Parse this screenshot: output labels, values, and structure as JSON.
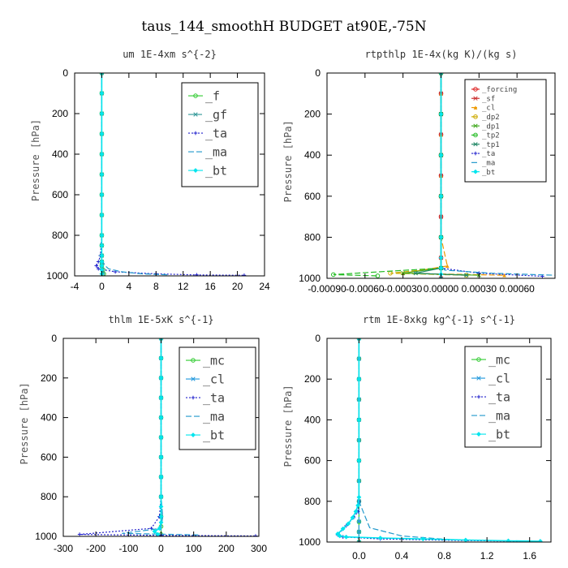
{
  "figure_title": "taus_144_smoothH  BUDGET at90E,-75N",
  "chart_data": [
    {
      "type": "line",
      "title": "um  1E-4xm s^{-2}",
      "xlabel": "",
      "ylabel": "Pressure [hPa]",
      "xlim": [
        -4,
        24
      ],
      "ylim": [
        1000,
        0
      ],
      "xticks": [
        "-4",
        "0",
        "4",
        "8",
        "12",
        "16",
        "20",
        "24"
      ],
      "yticks": [
        "0",
        "200",
        "400",
        "600",
        "800",
        "1000"
      ],
      "legend_position": "top-right",
      "series": [
        {
          "name": "_f",
          "color": "#33cc33",
          "style": "solid",
          "marker": "o",
          "x": [
            0,
            0,
            0,
            0,
            0,
            0,
            0,
            0,
            0,
            0,
            0,
            0,
            0,
            0.2,
            0.3
          ],
          "y": [
            0,
            100,
            200,
            300,
            400,
            500,
            600,
            700,
            800,
            850,
            900,
            930,
            950,
            970,
            990
          ]
        },
        {
          "name": "_gf",
          "color": "#339999",
          "style": "dashed",
          "marker": "*",
          "x": [
            0,
            0,
            0,
            0,
            0,
            0,
            0,
            0,
            0,
            0,
            0,
            0,
            0,
            0.1,
            0.2
          ],
          "y": [
            0,
            100,
            200,
            300,
            400,
            500,
            600,
            700,
            800,
            850,
            900,
            930,
            950,
            970,
            990
          ]
        },
        {
          "name": "_ta",
          "color": "#2222cc",
          "style": "dotted",
          "marker": "+",
          "x": [
            0,
            0,
            0,
            0,
            0,
            0,
            0,
            -0.2,
            -0.5,
            -0.8,
            -0.5,
            2,
            8,
            14,
            21
          ],
          "y": [
            0,
            100,
            200,
            300,
            400,
            600,
            800,
            900,
            930,
            950,
            965,
            980,
            990,
            995,
            997
          ]
        },
        {
          "name": "_ma",
          "color": "#2299cc",
          "style": "dashed",
          "marker": "",
          "x": [
            0,
            0,
            0,
            0,
            0,
            0,
            0,
            0.5,
            1,
            3,
            6,
            10
          ],
          "y": [
            0,
            200,
            400,
            600,
            800,
            880,
            920,
            950,
            965,
            980,
            990,
            995
          ]
        },
        {
          "name": "_bt",
          "color": "#00e5ee",
          "style": "solid",
          "marker": "diamond",
          "x": [
            0,
            0,
            0,
            0,
            0,
            0,
            0,
            0,
            0,
            0,
            0,
            0,
            0,
            0,
            0
          ],
          "y": [
            0,
            100,
            200,
            300,
            400,
            500,
            600,
            700,
            800,
            850,
            900,
            930,
            950,
            970,
            990
          ]
        }
      ]
    },
    {
      "type": "line",
      "title": "rtpthlp  1E-4x(kg K)/(kg s)",
      "xlabel": "",
      "ylabel": "Pressure [hPa]",
      "xlim": [
        -0.0009,
        0.0009
      ],
      "ylim": [
        1000,
        0
      ],
      "xticks": [
        "-0.00090",
        "-0.00060",
        "-0.00030",
        "0.00000",
        "0.00030",
        "0.00060"
      ],
      "yticks": [
        "0",
        "200",
        "400",
        "600",
        "800",
        "1000"
      ],
      "legend_position": "top-right",
      "series": [
        {
          "name": "_forcing",
          "color": "#dd2222",
          "style": "solid",
          "marker": "o",
          "x": [
            0,
            0,
            0,
            0,
            0,
            0,
            0,
            0,
            0,
            0,
            0
          ],
          "y": [
            0,
            100,
            200,
            300,
            400,
            500,
            600,
            700,
            800,
            900,
            1000
          ]
        },
        {
          "name": "_sf",
          "color": "#cc3333",
          "style": "solid",
          "marker": "*",
          "x": [
            0,
            0,
            0,
            0,
            0,
            0,
            0,
            0,
            0,
            0,
            0
          ],
          "y": [
            0,
            100,
            200,
            300,
            400,
            500,
            600,
            700,
            800,
            900,
            1000
          ]
        },
        {
          "name": "_cl",
          "color": "#ee9900",
          "style": "dashed",
          "marker": "triangle",
          "x": [
            0,
            0,
            0,
            0,
            0,
            0,
            0,
            0,
            5e-05,
            -0.0003,
            0.0005
          ],
          "y": [
            0,
            100,
            200,
            300,
            400,
            500,
            600,
            800,
            940,
            975,
            985
          ]
        },
        {
          "name": "_dp2",
          "color": "#ccaa00",
          "style": "dashed",
          "marker": "o",
          "x": [
            0,
            0,
            0,
            0,
            0,
            0,
            -0.0004,
            0.0002
          ],
          "y": [
            0,
            200,
            400,
            600,
            800,
            950,
            975,
            985
          ]
        },
        {
          "name": "_dp1",
          "color": "#44aa22",
          "style": "solid",
          "marker": "x",
          "x": [
            0,
            0,
            0,
            0,
            0,
            0,
            -0.0003,
            0.0003
          ],
          "y": [
            0,
            200,
            400,
            600,
            800,
            950,
            975,
            985
          ]
        },
        {
          "name": "_tp2",
          "color": "#22bb22",
          "style": "dashed",
          "marker": "o",
          "x": [
            0,
            0,
            0,
            0,
            0,
            0,
            -0.00085,
            -0.0005
          ],
          "y": [
            0,
            200,
            400,
            600,
            800,
            950,
            982,
            988
          ]
        },
        {
          "name": "_tp1",
          "color": "#228866",
          "style": "solid",
          "marker": "*",
          "x": [
            0,
            0,
            0,
            0,
            0,
            0,
            -0.0002,
            0.0002
          ],
          "y": [
            0,
            200,
            400,
            600,
            800,
            950,
            975,
            985
          ]
        },
        {
          "name": "_ta",
          "color": "#2222cc",
          "style": "dotted",
          "marker": "+",
          "x": [
            0,
            0,
            0,
            0,
            0,
            0,
            0.0003,
            0.0008
          ],
          "y": [
            0,
            200,
            400,
            600,
            800,
            950,
            975,
            990
          ]
        },
        {
          "name": "_ma",
          "color": "#2299cc",
          "style": "dashed",
          "marker": "",
          "x": [
            0,
            0,
            0,
            0,
            0,
            0,
            3e-05,
            0.0004,
            0.0009
          ],
          "y": [
            0,
            200,
            400,
            600,
            800,
            940,
            960,
            975,
            985
          ]
        },
        {
          "name": "_bt",
          "color": "#00e5ee",
          "style": "solid",
          "marker": "diamond",
          "x": [
            0,
            0,
            0,
            0,
            0,
            0,
            0,
            0,
            0
          ],
          "y": [
            0,
            200,
            400,
            600,
            800,
            900,
            950,
            980,
            1000
          ]
        }
      ]
    },
    {
      "type": "line",
      "title": "thlm  1E-5xK s^{-1}",
      "xlabel": "",
      "ylabel": "Pressure [hPa]",
      "xlim": [
        -300,
        300
      ],
      "ylim": [
        1000,
        0
      ],
      "xticks": [
        "-300",
        "-200",
        "-100",
        "0",
        "100",
        "200",
        "300"
      ],
      "yticks": [
        "0",
        "200",
        "400",
        "600",
        "800",
        "1000"
      ],
      "legend_position": "top-right",
      "series": [
        {
          "name": "_mc",
          "color": "#33cc33",
          "style": "solid",
          "marker": "o",
          "x": [
            0,
            0,
            0,
            0,
            0,
            0,
            0,
            0,
            0,
            0,
            0,
            0
          ],
          "y": [
            0,
            100,
            200,
            300,
            400,
            500,
            600,
            700,
            800,
            900,
            950,
            990
          ]
        },
        {
          "name": "_cl",
          "color": "#2299dd",
          "style": "dashed",
          "marker": "*",
          "x": [
            0,
            0,
            0,
            0,
            0,
            0,
            0,
            0,
            0,
            0,
            0
          ],
          "y": [
            0,
            100,
            200,
            300,
            400,
            500,
            600,
            700,
            800,
            900,
            1000
          ]
        },
        {
          "name": "_ta",
          "color": "#2222cc",
          "style": "dotted",
          "marker": "+",
          "x": [
            0,
            0,
            0,
            0,
            0,
            -5,
            -30,
            -250,
            0,
            290
          ],
          "y": [
            0,
            200,
            400,
            600,
            800,
            900,
            960,
            990,
            995,
            998
          ]
        },
        {
          "name": "_ma",
          "color": "#2299cc",
          "style": "dashed",
          "marker": "",
          "x": [
            0,
            0,
            0,
            0,
            0,
            5,
            0,
            -120,
            120
          ],
          "y": [
            0,
            200,
            400,
            600,
            800,
            900,
            960,
            985,
            993
          ]
        },
        {
          "name": "_bt",
          "color": "#00e5ee",
          "style": "solid",
          "marker": "diamond",
          "x": [
            0,
            0,
            0,
            0,
            0,
            0,
            0,
            0,
            0,
            0,
            0,
            0,
            -5,
            -20,
            -10
          ],
          "y": [
            0,
            100,
            200,
            300,
            400,
            500,
            600,
            700,
            800,
            850,
            900,
            930,
            960,
            975,
            990
          ]
        }
      ]
    },
    {
      "type": "line",
      "title": "rtm  1E-8xkg kg^{-1} s^{-1}",
      "xlabel": "",
      "ylabel": "Pressure [hPa]",
      "xlim": [
        -0.3,
        1.8
      ],
      "ylim": [
        1000,
        0
      ],
      "xticks": [
        "0.0",
        "0.4",
        "0.8",
        "1.2",
        "1.6"
      ],
      "yticks": [
        "0",
        "200",
        "400",
        "600",
        "800",
        "1000"
      ],
      "legend_position": "top-right",
      "series": [
        {
          "name": "_mc",
          "color": "#33cc33",
          "style": "solid",
          "marker": "o",
          "x": [
            0,
            0,
            0,
            0,
            0,
            0,
            0,
            0,
            0,
            0,
            0,
            0
          ],
          "y": [
            0,
            100,
            200,
            300,
            400,
            500,
            600,
            700,
            800,
            900,
            950,
            1000
          ]
        },
        {
          "name": "_cl",
          "color": "#2299dd",
          "style": "dashed",
          "marker": "*",
          "x": [
            0,
            0,
            0,
            0,
            0,
            0,
            0,
            0,
            0,
            0,
            0,
            0
          ],
          "y": [
            0,
            100,
            200,
            300,
            400,
            500,
            600,
            700,
            800,
            900,
            950,
            1000
          ]
        },
        {
          "name": "_ta",
          "color": "#2222cc",
          "style": "dotted",
          "marker": "+",
          "x": [
            0,
            0,
            0,
            0,
            0,
            -0.01,
            -0.05,
            -0.12,
            -0.2,
            -0.15,
            0.2,
            1.0,
            1.7
          ],
          "y": [
            0,
            200,
            400,
            600,
            800,
            850,
            880,
            920,
            965,
            975,
            985,
            993,
            997
          ]
        },
        {
          "name": "_ma",
          "color": "#2299cc",
          "style": "dashed",
          "marker": "",
          "x": [
            0,
            0,
            0,
            0,
            0,
            0.1,
            0.4,
            0.9
          ],
          "y": [
            0,
            200,
            400,
            600,
            800,
            930,
            970,
            990
          ]
        },
        {
          "name": "_bt",
          "color": "#00e5ee",
          "style": "solid",
          "marker": "diamond",
          "x": [
            0,
            0,
            0,
            0,
            0,
            -0.01,
            -0.03,
            -0.06,
            -0.1,
            -0.15,
            -0.2,
            -0.18,
            -0.12,
            0.2,
            0.6,
            1.0,
            1.4,
            1.7
          ],
          "y": [
            0,
            200,
            400,
            600,
            780,
            820,
            850,
            880,
            910,
            935,
            960,
            970,
            975,
            980,
            985,
            990,
            994,
            996
          ]
        }
      ]
    }
  ]
}
